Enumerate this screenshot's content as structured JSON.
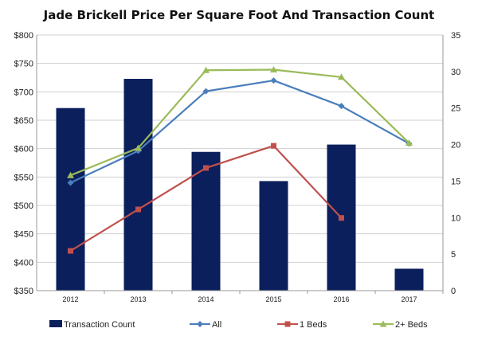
{
  "chart_data": {
    "type": "bar+line",
    "title": "Jade Brickell Price Per Square Foot And Transaction Count",
    "categories": [
      "2012",
      "2013",
      "2014",
      "2015",
      "2016",
      "2017"
    ],
    "left_axis": {
      "ylim": [
        350,
        800
      ],
      "ticks": [
        "$350",
        "$400",
        "$450",
        "$500",
        "$550",
        "$600",
        "$650",
        "$700",
        "$750",
        "$800"
      ],
      "tick_values": [
        350,
        400,
        450,
        500,
        550,
        600,
        650,
        700,
        750,
        800
      ]
    },
    "right_axis": {
      "ylim": [
        0,
        35
      ],
      "ticks": [
        "0",
        "5",
        "10",
        "15",
        "20",
        "25",
        "30",
        "35"
      ],
      "tick_values": [
        0,
        5,
        10,
        15,
        20,
        25,
        30,
        35
      ]
    },
    "grid": "horizontal",
    "legend_position": "bottom",
    "series": [
      {
        "name": "Transaction Count",
        "type": "bar",
        "axis": "right",
        "color": "#0b1f5c",
        "values": [
          25,
          29,
          19,
          15,
          20,
          3
        ]
      },
      {
        "name": "All",
        "type": "line",
        "axis": "left",
        "color": "#4a7ebb",
        "marker": "diamond",
        "values": [
          540,
          596,
          701,
          720,
          675,
          609
        ]
      },
      {
        "name": "1 Beds",
        "type": "line",
        "axis": "left",
        "color": "#c0504d",
        "marker": "square",
        "values": [
          420,
          493,
          566,
          605,
          478,
          null
        ]
      },
      {
        "name": "2+ Beds",
        "type": "line",
        "axis": "left",
        "color": "#9bbb59",
        "marker": "triangle",
        "values": [
          553,
          601,
          738,
          739,
          726,
          610
        ]
      }
    ]
  }
}
